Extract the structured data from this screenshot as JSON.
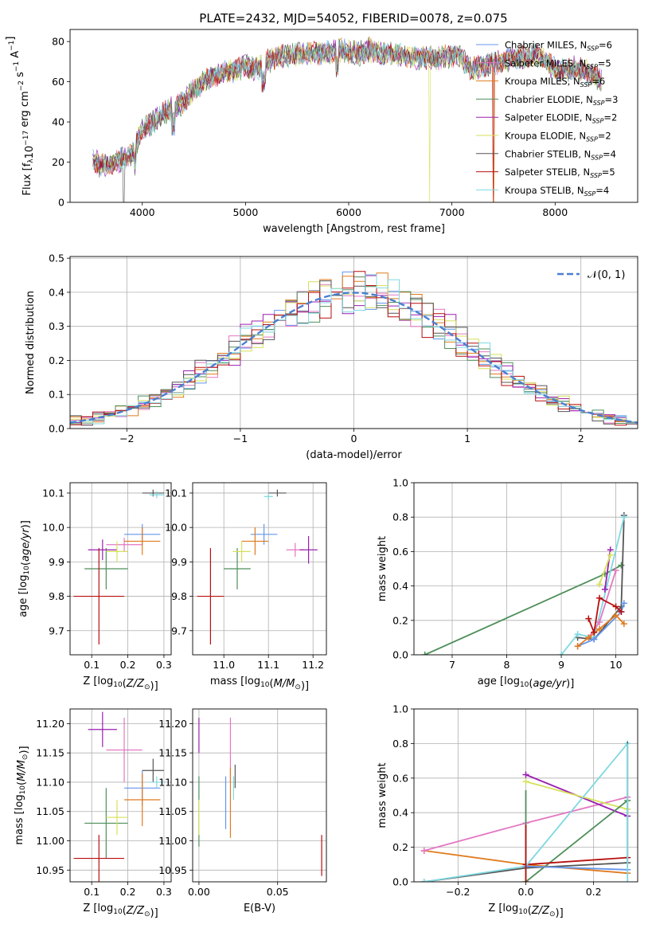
{
  "figure_title": "PLATE=2432, MJD=54052, FIBERID=0078, z=0.075",
  "colors": {
    "Chabrier MILES": "#6495ed",
    "Salpeter MILES": "#e377c2",
    "Kroupa MILES": "#e07b1f",
    "Chabrier ELODIE": "#4e8f5a",
    "Salpeter ELODIE": "#9a1fb0",
    "Kroupa ELODIE": "#d6e05a",
    "Chabrier STELIB": "#555555",
    "Salpeter STELIB": "#b80f0f",
    "Kroupa STELIB": "#7fd8e0"
  },
  "chart_data": [
    {
      "id": "spectrum",
      "type": "line",
      "title": "PLATE=2432, MJD=54052, FIBERID=0078, z=0.075",
      "xlabel": "wavelength [Angstrom, rest frame]",
      "ylabel": "Flux [f_λ10^-17 erg cm^-2 s^-1 A^-1]",
      "xlim": [
        3300,
        8800
      ],
      "ylim": [
        0,
        86
      ],
      "xticks": [
        4000,
        5000,
        6000,
        7000,
        8000
      ],
      "yticks": [
        0,
        20,
        40,
        60,
        80
      ],
      "grid": false,
      "legend_position": "top-right",
      "legend": [
        {
          "label": "Chabrier MILES, N_SSP=6",
          "color": "#6495ed"
        },
        {
          "label": "Salpeter MILES, N_SSP=5",
          "color": "#e377c2"
        },
        {
          "label": "Kroupa MILES, N_SSP=6",
          "color": "#e07b1f"
        },
        {
          "label": "Chabrier ELODIE, N_SSP=3",
          "color": "#4e8f5a"
        },
        {
          "label": "Salpeter ELODIE, N_SSP=2",
          "color": "#9a1fb0"
        },
        {
          "label": "Kroupa ELODIE, N_SSP=2",
          "color": "#d6e05a"
        },
        {
          "label": "Chabrier STELIB, N_SSP=4",
          "color": "#555555"
        },
        {
          "label": "Salpeter STELIB, N_SSP=5",
          "color": "#b80f0f"
        },
        {
          "label": "Kroupa STELIB, N_SSP=4",
          "color": "#7fd8e0"
        }
      ],
      "continuum": {
        "x": [
          3500,
          3600,
          3700,
          3800,
          3900,
          4000,
          4100,
          4200,
          4300,
          4400,
          4500,
          4600,
          4700,
          4800,
          4900,
          5000,
          5100,
          5200,
          5300,
          5400,
          5500,
          5600,
          5700,
          5800,
          5900,
          6000,
          6100,
          6200,
          6300,
          6400,
          6500,
          6600,
          6700,
          6800,
          6900,
          7000,
          7050,
          7100,
          7200,
          7300,
          7400,
          7500,
          7600,
          7700,
          7800,
          7900,
          8000,
          8100,
          8200,
          8300,
          8400,
          8500
        ],
        "y": [
          22,
          18,
          20,
          21,
          24,
          36,
          40,
          44,
          47,
          50,
          56,
          60,
          63,
          65,
          66,
          68,
          66,
          70,
          72,
          73,
          74,
          74,
          74,
          75,
          76,
          75,
          74,
          76,
          74,
          74,
          73,
          72,
          72,
          72,
          72,
          73,
          74,
          71,
          66,
          68,
          69,
          70,
          72,
          72,
          74,
          71,
          66,
          66,
          67,
          65,
          62,
          60
        ]
      },
      "dropouts": [
        {
          "series": "Kroupa ELODIE",
          "x": 6785
        },
        {
          "series": "Kroupa MILES",
          "x": 7410
        },
        {
          "series": "Salpeter STELIB",
          "x": 7400
        },
        {
          "series": "Chabrier STELIB",
          "x": 3820
        }
      ]
    },
    {
      "id": "residual_histogram",
      "type": "line",
      "xlabel": "(data-model)/error",
      "ylabel": "Normed distribution",
      "xlim": [
        -2.5,
        2.5
      ],
      "ylim": [
        0,
        0.505
      ],
      "xticks": [
        -2,
        -1,
        0,
        1,
        2
      ],
      "yticks": [
        0.0,
        0.1,
        0.2,
        0.3,
        0.4,
        0.5
      ],
      "grid": true,
      "legend_position": "top-right",
      "legend": [
        {
          "label": "𝒩(0, 1)",
          "color": "#4a7fd0",
          "style": "dashed"
        }
      ],
      "gaussian": {
        "mu": 0,
        "sigma": 1
      },
      "bin_width": 0.1
    },
    {
      "id": "age_vs_Z",
      "type": "scatter",
      "xlabel": "Z [log10(Z/Z⊙)]",
      "ylabel": "age [log10(age/yr)]",
      "xlim": [
        0.04,
        0.32
      ],
      "ylim": [
        9.63,
        10.13
      ],
      "xticks": [
        0.1,
        0.2,
        0.3
      ],
      "yticks": [
        9.7,
        9.8,
        9.9,
        10.0,
        10.1
      ],
      "grid": true,
      "errorbars": [
        {
          "series": "Chabrier MILES",
          "x": 0.24,
          "xerr": 0.05,
          "y": 9.98,
          "yerr": 0.03
        },
        {
          "series": "Salpeter MILES",
          "x": 0.19,
          "xerr": 0.05,
          "y": 9.95,
          "yerr": 0.02
        },
        {
          "series": "Kroupa MILES",
          "x": 0.24,
          "xerr": 0.05,
          "y": 9.96,
          "yerr": 0.04
        },
        {
          "series": "Chabrier ELODIE",
          "x": 0.14,
          "xerr": 0.06,
          "y": 9.88,
          "yerr": 0.06
        },
        {
          "series": "Salpeter ELODIE",
          "x": 0.13,
          "xerr": 0.04,
          "y": 9.935,
          "yerr": 0.03
        },
        {
          "series": "Kroupa ELODIE",
          "x": 0.17,
          "xerr": 0.03,
          "y": 9.93,
          "yerr": 0.03
        },
        {
          "series": "Chabrier STELIB",
          "x": 0.27,
          "xerr": 0.03,
          "y": 10.1,
          "yerr": 0.01
        },
        {
          "series": "Salpeter STELIB",
          "x": 0.12,
          "xerr": 0.07,
          "y": 9.8,
          "yerr": 0.14
        },
        {
          "series": "Kroupa STELIB",
          "x": 0.28,
          "xerr": 0.02,
          "y": 10.095,
          "yerr": 0.01
        }
      ]
    },
    {
      "id": "age_vs_mass",
      "type": "scatter",
      "xlabel": "mass [log10(M/M⊙)]",
      "ylabel": "",
      "xlim": [
        10.93,
        11.23
      ],
      "ylim": [
        9.63,
        10.13
      ],
      "xticks": [
        11.0,
        11.1,
        11.2
      ],
      "yticks": [
        9.7,
        9.8,
        9.9,
        10.0,
        10.1
      ],
      "grid": true,
      "errorbars": [
        {
          "series": "Chabrier MILES",
          "x": 11.09,
          "xerr": 0.03,
          "y": 9.98,
          "yerr": 0.03
        },
        {
          "series": "Salpeter MILES",
          "x": 11.16,
          "xerr": 0.02,
          "y": 9.935,
          "yerr": 0.02
        },
        {
          "series": "Kroupa MILES",
          "x": 11.07,
          "xerr": 0.03,
          "y": 9.96,
          "yerr": 0.04
        },
        {
          "series": "Chabrier ELODIE",
          "x": 11.03,
          "xerr": 0.03,
          "y": 9.88,
          "yerr": 0.06
        },
        {
          "series": "Salpeter ELODIE",
          "x": 11.19,
          "xerr": 0.02,
          "y": 9.935,
          "yerr": 0.04
        },
        {
          "series": "Kroupa ELODIE",
          "x": 11.04,
          "xerr": 0.02,
          "y": 9.93,
          "yerr": 0.03
        },
        {
          "series": "Chabrier STELIB",
          "x": 11.12,
          "xerr": 0.02,
          "y": 10.1,
          "yerr": 0.01
        },
        {
          "series": "Salpeter STELIB",
          "x": 10.97,
          "xerr": 0.03,
          "y": 9.8,
          "yerr": 0.14
        },
        {
          "series": "Kroupa STELIB",
          "x": 11.1,
          "xerr": 0.01,
          "y": 10.09,
          "yerr": 0.01
        }
      ]
    },
    {
      "id": "weight_vs_age",
      "type": "line",
      "xlabel": "age [log10(age/yr)]",
      "ylabel": "mass weight",
      "xlim": [
        6.3,
        10.4
      ],
      "ylim": [
        0,
        1.0
      ],
      "xticks": [
        7,
        8,
        9,
        10
      ],
      "yticks": [
        0.0,
        0.2,
        0.4,
        0.6,
        0.8,
        1.0
      ],
      "grid": true,
      "series": [
        {
          "name": "Chabrier ELODIE",
          "x": [
            6.5,
            9.8,
            10.1
          ],
          "y": [
            0.0,
            0.47,
            0.52
          ]
        },
        {
          "name": "Chabrier STELIB",
          "x": [
            9.3,
            9.6,
            10.1,
            10.15
          ],
          "y": [
            0.1,
            0.09,
            0.28,
            0.81
          ]
        },
        {
          "name": "Kroupa STELIB",
          "x": [
            9.0,
            9.3,
            9.6,
            10.15
          ],
          "y": [
            0.0,
            0.12,
            0.1,
            0.8
          ]
        },
        {
          "name": "Chabrier MILES",
          "x": [
            9.3,
            9.6,
            10.1,
            10.15
          ],
          "y": [
            0.05,
            0.09,
            0.25,
            0.3
          ]
        },
        {
          "name": "Salpeter MILES",
          "x": [
            9.5,
            9.7,
            10.0
          ],
          "y": [
            0.1,
            0.19,
            0.49
          ]
        },
        {
          "name": "Kroupa MILES",
          "x": [
            9.3,
            9.5,
            9.7,
            10.0,
            10.15
          ],
          "y": [
            0.05,
            0.1,
            0.15,
            0.23,
            0.18
          ]
        },
        {
          "name": "Salpeter ELODIE",
          "x": [
            9.8,
            9.9
          ],
          "y": [
            0.38,
            0.61
          ]
        },
        {
          "name": "Kroupa ELODIE",
          "x": [
            9.7,
            9.9
          ],
          "y": [
            0.41,
            0.58
          ]
        },
        {
          "name": "Salpeter STELIB",
          "x": [
            9.5,
            9.6,
            9.7,
            10.0,
            10.1
          ],
          "y": [
            0.21,
            0.13,
            0.33,
            0.28,
            0.25
          ]
        }
      ]
    },
    {
      "id": "mass_vs_Z",
      "type": "scatter",
      "xlabel": "Z [log10(Z/Z⊙)]",
      "ylabel": "mass [log10(M/M⊙)]",
      "xlim": [
        0.04,
        0.32
      ],
      "ylim": [
        10.93,
        11.225
      ],
      "xticks": [
        0.1,
        0.2,
        0.3
      ],
      "yticks": [
        10.95,
        11.0,
        11.05,
        11.1,
        11.15,
        11.2
      ],
      "grid": true,
      "errorbars": [
        {
          "series": "Chabrier MILES",
          "x": 0.24,
          "xerr": 0.05,
          "y": 11.09,
          "yerr": 0.03
        },
        {
          "series": "Salpeter MILES",
          "x": 0.19,
          "xerr": 0.05,
          "y": 11.155,
          "yerr": 0.055
        },
        {
          "series": "Kroupa MILES",
          "x": 0.24,
          "xerr": 0.05,
          "y": 11.07,
          "yerr": 0.045
        },
        {
          "series": "Chabrier ELODIE",
          "x": 0.14,
          "xerr": 0.06,
          "y": 11.03,
          "yerr": 0.06
        },
        {
          "series": "Salpeter ELODIE",
          "x": 0.13,
          "xerr": 0.04,
          "y": 11.19,
          "yerr": 0.03
        },
        {
          "series": "Kroupa ELODIE",
          "x": 0.17,
          "xerr": 0.03,
          "y": 11.04,
          "yerr": 0.03
        },
        {
          "series": "Chabrier STELIB",
          "x": 0.27,
          "xerr": 0.03,
          "y": 11.12,
          "yerr": 0.02
        },
        {
          "series": "Salpeter STELIB",
          "x": 0.12,
          "xerr": 0.07,
          "y": 10.97,
          "yerr": 0.04
        },
        {
          "series": "Kroupa STELIB",
          "x": 0.28,
          "xerr": 0.02,
          "y": 11.1,
          "yerr": 0.01
        }
      ]
    },
    {
      "id": "mass_vs_ebv",
      "type": "scatter",
      "xlabel": "E(B-V)",
      "ylabel": "",
      "xlim": [
        -0.004,
        0.081
      ],
      "ylim": [
        10.93,
        11.225
      ],
      "xticks": [
        0.0,
        0.05
      ],
      "yticks": [
        10.95,
        11.0,
        11.05,
        11.1,
        11.15,
        11.2
      ],
      "grid": true,
      "errorbars": [
        {
          "series": "Chabrier MILES",
          "x": 0.017,
          "xerr": 0,
          "y": 11.065,
          "yerr": 0.045
        },
        {
          "series": "Salpeter MILES",
          "x": 0.02,
          "xerr": 0,
          "y": 11.155,
          "yerr": 0.055
        },
        {
          "series": "Kroupa MILES",
          "x": 0.02,
          "xerr": 0,
          "y": 11.065,
          "yerr": 0.06
        },
        {
          "series": "Chabrier ELODIE",
          "x": 0.0,
          "xerr": 0,
          "y": 11.05,
          "yerr": 0.06
        },
        {
          "series": "Salpeter ELODIE",
          "x": 0.0,
          "xerr": 0,
          "y": 11.18,
          "yerr": 0.03
        },
        {
          "series": "Kroupa ELODIE",
          "x": 0.0,
          "xerr": 0,
          "y": 11.04,
          "yerr": 0.03
        },
        {
          "series": "Chabrier STELIB",
          "x": 0.023,
          "xerr": 0,
          "y": 11.11,
          "yerr": 0.02
        },
        {
          "series": "Salpeter STELIB",
          "x": 0.078,
          "xerr": 0,
          "y": 10.975,
          "yerr": 0.035
        },
        {
          "series": "Kroupa STELIB",
          "x": 0.022,
          "xerr": 0,
          "y": 11.09,
          "yerr": 0.02
        }
      ]
    },
    {
      "id": "weight_vs_Z",
      "type": "line",
      "xlabel": "Z [log10(Z/Z⊙)]",
      "ylabel": "mass weight",
      "xlim": [
        -0.33,
        0.33
      ],
      "ylim": [
        0,
        1.0
      ],
      "xticks": [
        -0.2,
        0.0,
        0.2
      ],
      "yticks": [
        0.0,
        0.2,
        0.4,
        0.6,
        0.8,
        1.0
      ],
      "grid": true,
      "series": [
        {
          "name": "Kroupa MILES",
          "x": [
            -0.3,
            0.0,
            0.3
          ],
          "y": [
            0.18,
            0.1,
            0.05
          ]
        },
        {
          "name": "Salpeter MILES",
          "x": [
            -0.3,
            0.0,
            0.3
          ],
          "y": [
            0.18,
            0.34,
            0.49
          ]
        },
        {
          "name": "Salpeter ELODIE",
          "x": [
            0.0,
            0.3
          ],
          "y": [
            0.62,
            0.38
          ]
        },
        {
          "name": "Kroupa ELODIE",
          "x": [
            0.0,
            0.3
          ],
          "y": [
            0.58,
            0.42
          ]
        },
        {
          "name": "Chabrier ELODIE",
          "x": [
            0.0,
            0.3
          ],
          "y": [
            0.0,
            0.47
          ]
        },
        {
          "name": "Chabrier STELIB",
          "x": [
            -0.3,
            0.0,
            0.3
          ],
          "y": [
            0.0,
            0.08,
            0.11
          ]
        },
        {
          "name": "Salpeter STELIB",
          "x": [
            0.0,
            0.3
          ],
          "y": [
            0.1,
            0.14
          ]
        },
        {
          "name": "Kroupa STELIB",
          "x": [
            -0.3,
            0.0,
            0.3
          ],
          "y": [
            0.0,
            0.09,
            0.8
          ]
        },
        {
          "name": "Chabrier MILES",
          "x": [
            0.0,
            0.3
          ],
          "y": [
            0.09,
            0.07
          ]
        }
      ],
      "vertical_stacks": [
        {
          "series": "Chabrier ELODIE",
          "x": 0.0,
          "y": [
            0.0,
            0.53
          ]
        },
        {
          "series": "Salpeter STELIB",
          "x": 0.0,
          "y": [
            0.0,
            0.33
          ]
        },
        {
          "series": "Chabrier STELIB",
          "x": 0.3,
          "y": [
            0.11,
            0.81
          ]
        },
        {
          "series": "Kroupa STELIB",
          "x": 0.3,
          "y": [
            0.0,
            0.8
          ]
        }
      ]
    }
  ]
}
